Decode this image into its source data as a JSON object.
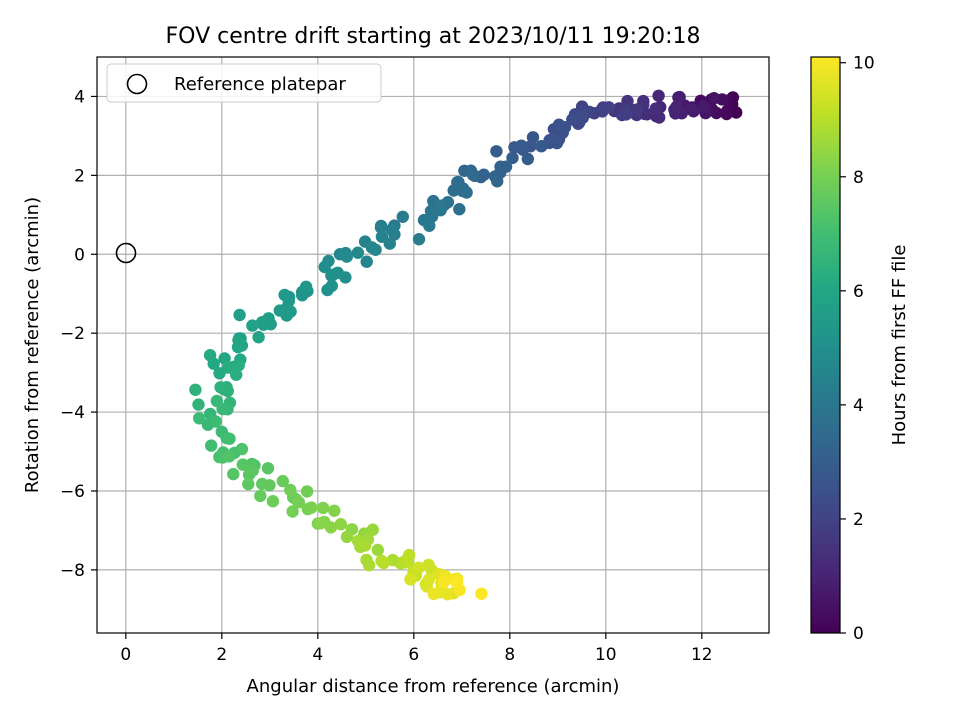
{
  "chart_data": {
    "type": "scatter",
    "title": "FOV centre drift starting at 2023/10/11 19:20:18",
    "xlabel": "Angular distance from reference (arcmin)",
    "ylabel": "Rotation from reference (arcmin)",
    "xlim": [
      -0.6,
      13.4
    ],
    "ylim": [
      -9.6,
      5.0
    ],
    "xticks": [
      0,
      2,
      4,
      6,
      8,
      10,
      12
    ],
    "yticks": [
      -8,
      -6,
      -4,
      -2,
      0,
      2,
      4
    ],
    "grid": true,
    "legend": {
      "placement": "upper-left",
      "entries": [
        "Reference platepar"
      ]
    },
    "reference_point": {
      "x": 0,
      "y": 0,
      "label": "Reference platepar"
    },
    "colorbar": {
      "label": "Hours from first FF file",
      "min": 0,
      "max": 10.1,
      "ticks": [
        0,
        2,
        4,
        6,
        8,
        10
      ],
      "colormap": "viridis"
    },
    "anchors": [
      {
        "t": 0.0,
        "x": 12.6,
        "y": 3.7
      },
      {
        "t": 1.0,
        "x": 11.3,
        "y": 3.8
      },
      {
        "t": 2.0,
        "x": 9.8,
        "y": 3.5
      },
      {
        "t": 2.6,
        "x": 8.8,
        "y": 3.0
      },
      {
        "t": 3.2,
        "x": 7.6,
        "y": 2.1
      },
      {
        "t": 3.9,
        "x": 6.5,
        "y": 1.2
      },
      {
        "t": 4.4,
        "x": 5.3,
        "y": 0.3
      },
      {
        "t": 4.9,
        "x": 4.3,
        "y": -0.5
      },
      {
        "t": 5.3,
        "x": 3.6,
        "y": -1.1
      },
      {
        "t": 5.7,
        "x": 2.6,
        "y": -1.9
      },
      {
        "t": 6.1,
        "x": 2.1,
        "y": -2.7
      },
      {
        "t": 6.5,
        "x": 1.8,
        "y": -3.5
      },
      {
        "t": 6.8,
        "x": 1.8,
        "y": -4.2
      },
      {
        "t": 7.1,
        "x": 2.2,
        "y": -4.9
      },
      {
        "t": 7.5,
        "x": 2.8,
        "y": -5.6
      },
      {
        "t": 7.9,
        "x": 3.5,
        "y": -6.2
      },
      {
        "t": 8.3,
        "x": 4.4,
        "y": -6.9
      },
      {
        "t": 8.8,
        "x": 5.3,
        "y": -7.6
      },
      {
        "t": 9.3,
        "x": 6.0,
        "y": -8.0
      },
      {
        "t": 9.8,
        "x": 6.7,
        "y": -8.4
      },
      {
        "t": 10.1,
        "x": 7.1,
        "y": -8.5
      }
    ],
    "points_count": 260
  }
}
